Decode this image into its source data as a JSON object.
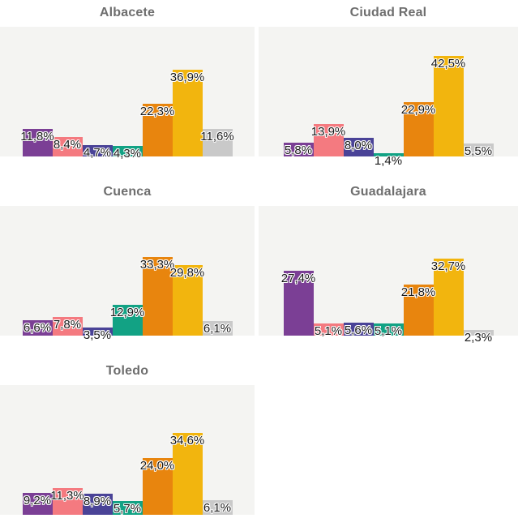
{
  "palette": {
    "purple": "#7b3f95",
    "salmon": "#f47a80",
    "indigo": "#4a4397",
    "teal": "#12a284",
    "orange": "#e8850e",
    "yellow": "#f2b50e",
    "gray": "#c9c9c9"
  },
  "panel_background": "#f4f4f2",
  "title_color": "#6e6e6e",
  "label_color": "#1a1a1a",
  "chart_data": [
    {
      "type": "bar",
      "title": "Albacete",
      "categories": [
        "purple",
        "salmon",
        "indigo",
        "teal",
        "orange",
        "yellow",
        "gray"
      ],
      "values": [
        11.8,
        8.4,
        4.7,
        4.3,
        22.3,
        36.9,
        11.6
      ],
      "labels": [
        "11,8%",
        "8,4%",
        "4,7%",
        "4,3%",
        "22,3%",
        "36,9%",
        "11,6%"
      ],
      "ylim": [
        0,
        55
      ],
      "grid": "off",
      "legend": "none"
    },
    {
      "type": "bar",
      "title": "Ciudad Real",
      "categories": [
        "purple",
        "salmon",
        "indigo",
        "teal",
        "orange",
        "yellow",
        "gray"
      ],
      "values": [
        5.8,
        13.9,
        8.0,
        1.4,
        22.9,
        42.5,
        5.5
      ],
      "labels": [
        "5,8%",
        "13,9%",
        "8,0%",
        "1,4%",
        "22,9%",
        "42,5%",
        "5,5%"
      ],
      "ylim": [
        0,
        55
      ],
      "grid": "off",
      "legend": "none"
    },
    {
      "type": "bar",
      "title": "Cuenca",
      "categories": [
        "purple",
        "salmon",
        "indigo",
        "teal",
        "orange",
        "yellow",
        "gray"
      ],
      "values": [
        6.6,
        7.8,
        3.5,
        12.9,
        33.3,
        29.8,
        6.1
      ],
      "labels": [
        "6,6%",
        "7,8%",
        "3,5%",
        "12,9%",
        "33,3%",
        "29,8%",
        "6,1%"
      ],
      "ylim": [
        0,
        55
      ],
      "grid": "off",
      "legend": "none"
    },
    {
      "type": "bar",
      "title": "Guadalajara",
      "categories": [
        "purple",
        "salmon",
        "indigo",
        "teal",
        "orange",
        "yellow",
        "gray"
      ],
      "values": [
        27.4,
        5.1,
        5.6,
        5.1,
        21.8,
        32.7,
        2.3
      ],
      "labels": [
        "27,4%",
        "5,1%",
        "5,6%",
        "5,1%",
        "21,8%",
        "32,7%",
        "2,3%"
      ],
      "ylim": [
        0,
        55
      ],
      "grid": "off",
      "legend": "none"
    },
    {
      "type": "bar",
      "title": "Toledo",
      "categories": [
        "purple",
        "salmon",
        "indigo",
        "teal",
        "orange",
        "yellow",
        "gray"
      ],
      "values": [
        9.2,
        11.3,
        8.9,
        5.7,
        24.0,
        34.6,
        6.1
      ],
      "labels": [
        "9,2%",
        "11,3%",
        "8,9%",
        "5,7%",
        "24,0%",
        "34,6%",
        "6,1%"
      ],
      "ylim": [
        0,
        55
      ],
      "grid": "off",
      "legend": "none"
    }
  ]
}
